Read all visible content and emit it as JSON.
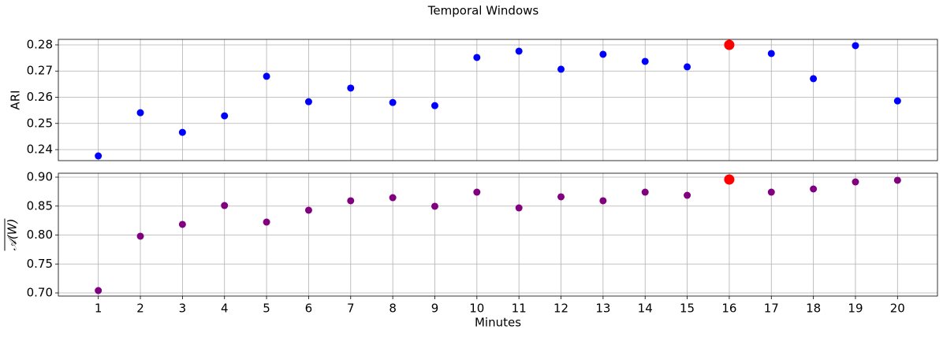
{
  "title": "Temporal Windows",
  "chart_data": [
    {
      "type": "scatter",
      "ylabel": "ARI",
      "x": [
        1,
        2,
        3,
        4,
        5,
        6,
        7,
        8,
        9,
        10,
        11,
        12,
        13,
        14,
        15,
        16,
        17,
        18,
        19,
        20
      ],
      "series": [
        {
          "color": "#0000ff",
          "values": [
            0.2376,
            0.2541,
            0.2466,
            0.2529,
            0.268,
            0.2583,
            0.2635,
            0.258,
            0.2568,
            0.2752,
            0.2776,
            0.2707,
            0.2764,
            0.2737,
            0.2716,
            0.28,
            0.2767,
            0.2671,
            0.2797,
            0.2586
          ]
        }
      ],
      "highlight": {
        "x": 16,
        "color": "#ff0000"
      },
      "xlim": [
        0.05,
        20.95
      ],
      "xticks": [
        1,
        2,
        3,
        4,
        5,
        6,
        7,
        8,
        9,
        10,
        11,
        12,
        13,
        14,
        15,
        16,
        17,
        18,
        19,
        20
      ],
      "show_xtick_labels": false,
      "ylim": [
        0.2358,
        0.2821
      ],
      "yticks": [
        0.24,
        0.25,
        0.26,
        0.27,
        0.28
      ],
      "grid": true
    },
    {
      "type": "scatter",
      "ylabel": "𝒜(W)",
      "ylabel_overline": true,
      "xlabel": "Minutes",
      "x": [
        1,
        2,
        3,
        4,
        5,
        6,
        7,
        8,
        9,
        10,
        11,
        12,
        13,
        14,
        15,
        16,
        17,
        18,
        19,
        20
      ],
      "series": [
        {
          "color": "#800080",
          "values": [
            0.7041,
            0.798,
            0.8184,
            0.851,
            0.8224,
            0.8429,
            0.8592,
            0.8646,
            0.8497,
            0.8741,
            0.8469,
            0.866,
            0.8592,
            0.8741,
            0.8687,
            0.8959,
            0.8741,
            0.8796,
            0.8918,
            0.8946
          ]
        }
      ],
      "highlight": {
        "x": 16,
        "color": "#ff0000"
      },
      "xlim": [
        0.05,
        20.95
      ],
      "xticks": [
        1,
        2,
        3,
        4,
        5,
        6,
        7,
        8,
        9,
        10,
        11,
        12,
        13,
        14,
        15,
        16,
        17,
        18,
        19,
        20
      ],
      "show_xtick_labels": true,
      "ylim": [
        0.6946,
        0.9068
      ],
      "yticks": [
        {
          "value": 0.7,
          "label": "0.70"
        },
        0.75,
        {
          "value": 0.8,
          "label": "0.80"
        },
        0.85,
        {
          "value": 0.9,
          "label": "0.90"
        }
      ],
      "grid": true
    }
  ]
}
